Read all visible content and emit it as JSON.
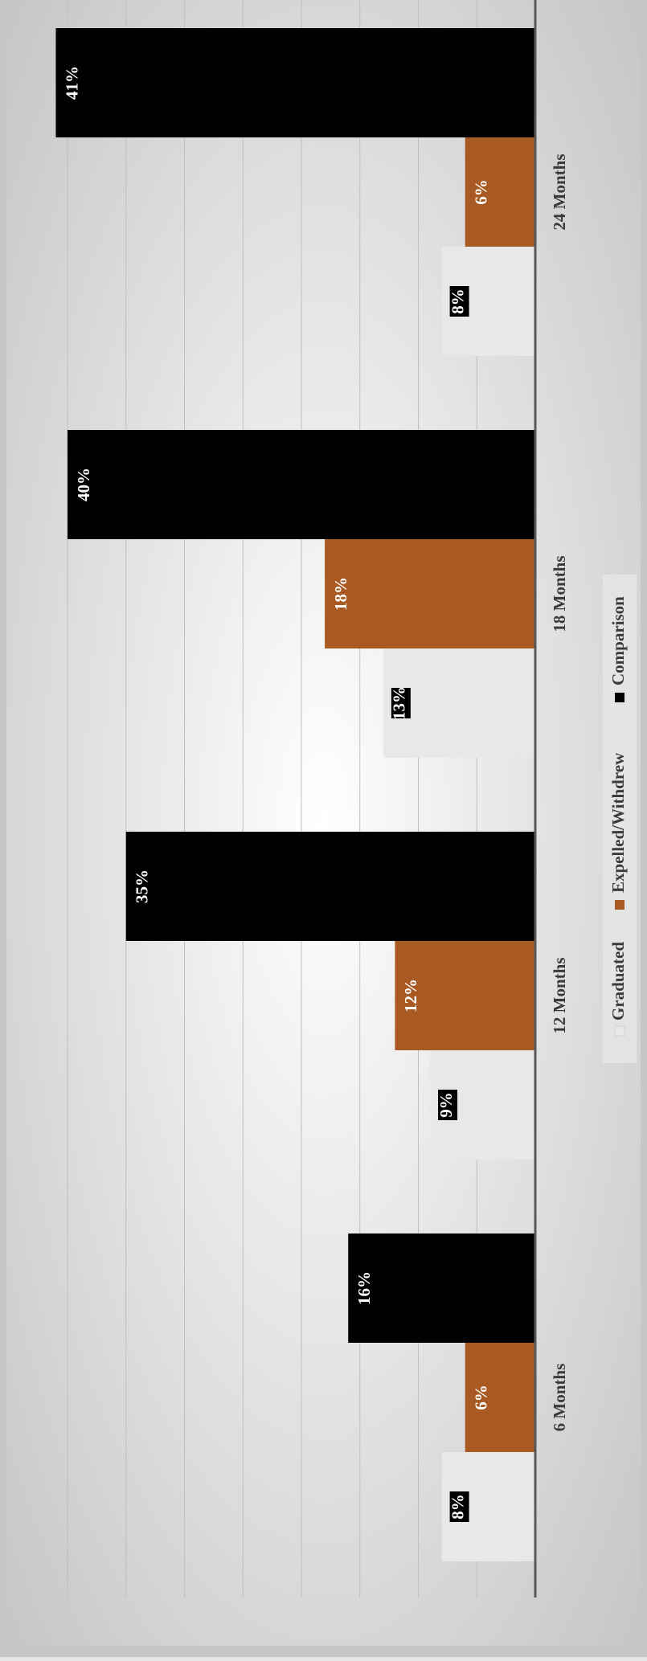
{
  "chart_data": {
    "type": "bar",
    "orientation": "rotated-90",
    "categories": [
      "6 Months",
      "12 Months",
      "18 Months",
      "24 Months"
    ],
    "series": [
      {
        "name": "Graduated",
        "values": [
          8,
          9,
          13,
          8
        ],
        "labels": [
          "8%",
          "9%",
          "13%",
          "8%"
        ],
        "color": "#e8e8e8",
        "label_color": "#ffffff",
        "label_bg": "#000000"
      },
      {
        "name": "Expelled/Withdrew",
        "values": [
          6,
          12,
          18,
          6
        ],
        "labels": [
          "6%",
          "12%",
          "18%",
          "6%"
        ],
        "color": "#a85a22",
        "label_color": "#ffffff",
        "label_bg": ""
      },
      {
        "name": "Comparison",
        "values": [
          16,
          35,
          40,
          41
        ],
        "labels": [
          "16%",
          "35%",
          "40%",
          "41%"
        ],
        "color": "#000000",
        "label_color": "#ffffff",
        "label_bg": ""
      }
    ],
    "ylim": [
      0,
      40
    ],
    "grid": true,
    "legend": "bottom",
    "title": "",
    "xlabel": "",
    "ylabel": ""
  },
  "colors": {
    "background_center": "#ffffff",
    "background_edge": "#c6c6c6",
    "gridline": "#bfbfbf",
    "axis": "#595959",
    "text": "#3a3a3a"
  }
}
